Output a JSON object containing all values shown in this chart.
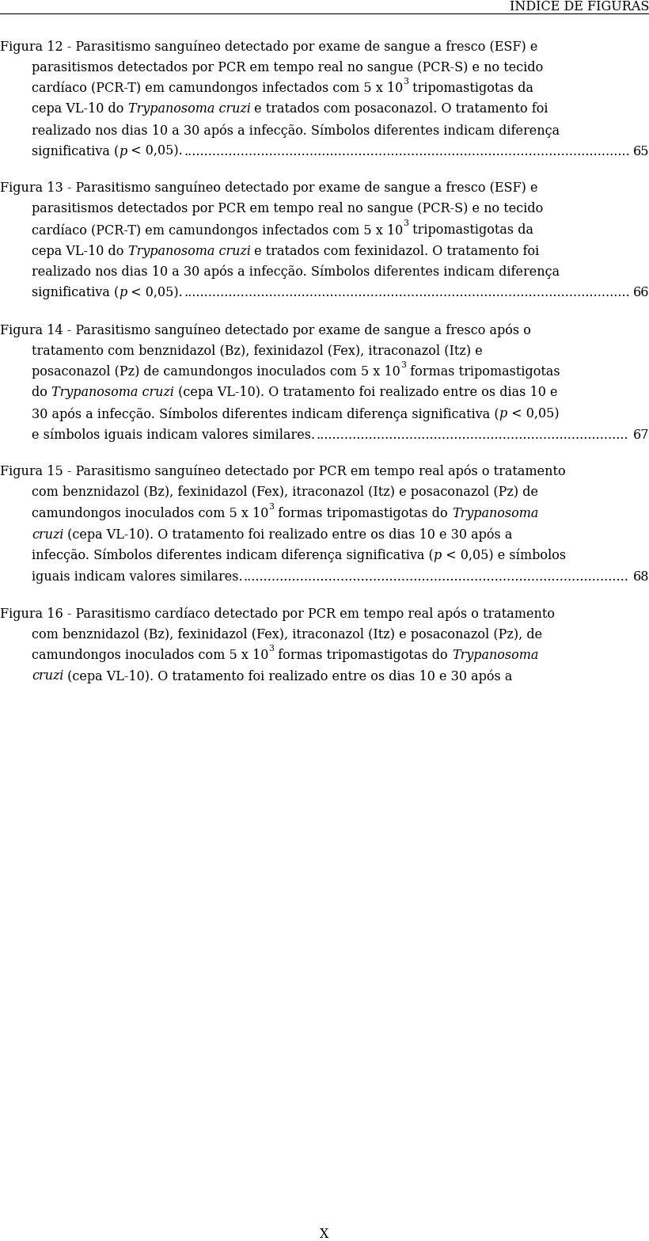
{
  "background_color": "#ffffff",
  "header_text": "ÍNDICE DE FIGURAS",
  "header_fontsize": 11.5,
  "body_fontsize": 11.5,
  "page_label": "X",
  "paragraphs": [
    {
      "lines": [
        {
          "indent": false,
          "parts": [
            [
              "Figura 12 - Parasitismo sanguíneo detectado por exame de sangue a fresco (ESF) e",
              "normal"
            ]
          ]
        },
        {
          "indent": true,
          "parts": [
            [
              "parasitismos detectados por PCR em tempo real no sangue (PCR-S) e no tecido",
              "normal"
            ]
          ]
        },
        {
          "indent": true,
          "parts": [
            [
              "cardíaco (PCR-T) em camundongos infectados com 5 x 10",
              "normal"
            ],
            [
              "3",
              "super"
            ],
            [
              " tripomastigotas da",
              "normal"
            ]
          ]
        },
        {
          "indent": true,
          "parts": [
            [
              "cepa VL-10 do ",
              "normal"
            ],
            [
              "Trypanosoma cruzi",
              "italic"
            ],
            [
              " e tratados com posaconazol. O tratamento foi",
              "normal"
            ]
          ]
        },
        {
          "indent": true,
          "parts": [
            [
              "realizado nos dias 10 a 30 após a infecção. Símbolos diferentes indicam diferença",
              "normal"
            ]
          ]
        },
        {
          "indent": true,
          "parts": [
            [
              "significativa (",
              "normal"
            ],
            [
              "p",
              "italic"
            ],
            [
              " < 0,05).",
              "normal"
            ]
          ],
          "page": "65"
        }
      ]
    },
    {
      "lines": [
        {
          "indent": false,
          "parts": [
            [
              "Figura 13 - Parasitismo sanguíneo detectado por exame de sangue a fresco (ESF) e",
              "normal"
            ]
          ]
        },
        {
          "indent": true,
          "parts": [
            [
              "parasitismos detectados por PCR em tempo real no sangue (PCR-S) e no tecido",
              "normal"
            ]
          ]
        },
        {
          "indent": true,
          "parts": [
            [
              "cardíaco (PCR-T) em camundongos infectados com 5 x 10",
              "normal"
            ],
            [
              "3",
              "super"
            ],
            [
              " tripomastigotas da",
              "normal"
            ]
          ]
        },
        {
          "indent": true,
          "parts": [
            [
              "cepa VL-10 do ",
              "normal"
            ],
            [
              "Trypanosoma cruzi",
              "italic"
            ],
            [
              " e tratados com fexinidazol. O tratamento foi",
              "normal"
            ]
          ]
        },
        {
          "indent": true,
          "parts": [
            [
              "realizado nos dias 10 a 30 após a infecção. Símbolos diferentes indicam diferença",
              "normal"
            ]
          ]
        },
        {
          "indent": true,
          "parts": [
            [
              "significativa (",
              "normal"
            ],
            [
              "p",
              "italic"
            ],
            [
              " < 0,05).",
              "normal"
            ]
          ],
          "page": "66"
        }
      ]
    },
    {
      "lines": [
        {
          "indent": false,
          "parts": [
            [
              "Figura 14 - Parasitismo sanguíneo detectado por exame de sangue a fresco após o",
              "normal"
            ]
          ]
        },
        {
          "indent": true,
          "parts": [
            [
              "tratamento com benznidazol (Bz), fexinidazol (Fex), itraconazol (Itz) e",
              "normal"
            ]
          ]
        },
        {
          "indent": true,
          "parts": [
            [
              "posaconazol (Pz) de camundongos inoculados com 5 x 10",
              "normal"
            ],
            [
              "3",
              "super"
            ],
            [
              " formas tripomastigotas",
              "normal"
            ]
          ]
        },
        {
          "indent": true,
          "parts": [
            [
              "do ",
              "normal"
            ],
            [
              "Trypanosoma cruzi",
              "italic"
            ],
            [
              " (cepa VL-10). O tratamento foi realizado entre os dias 10 e",
              "normal"
            ]
          ]
        },
        {
          "indent": true,
          "parts": [
            [
              "30 após a infecção. Símbolos diferentes indicam diferença significativa (",
              "normal"
            ],
            [
              "p",
              "italic"
            ],
            [
              " < 0,05)",
              "normal"
            ]
          ]
        },
        {
          "indent": true,
          "parts": [
            [
              "e símbolos iguais indicam valores similares.",
              "normal"
            ]
          ],
          "page": "67"
        }
      ]
    },
    {
      "lines": [
        {
          "indent": false,
          "parts": [
            [
              "Figura 15 - Parasitismo sanguíneo detectado por PCR em tempo real após o tratamento",
              "normal"
            ]
          ]
        },
        {
          "indent": true,
          "parts": [
            [
              "com benznidazol (Bz), fexinidazol (Fex), itraconazol (Itz) e posaconazol (Pz) de",
              "normal"
            ]
          ]
        },
        {
          "indent": true,
          "parts": [
            [
              "camundongos inoculados com 5 x 10",
              "normal"
            ],
            [
              "3",
              "super"
            ],
            [
              " formas tripomastigotas do ",
              "normal"
            ],
            [
              "Trypanosoma",
              "italic"
            ]
          ]
        },
        {
          "indent": true,
          "parts": [
            [
              "cruzi",
              "italic"
            ],
            [
              " (cepa VL-10). O tratamento foi realizado entre os dias 10 e 30 após a",
              "normal"
            ]
          ]
        },
        {
          "indent": true,
          "parts": [
            [
              "infecção. Símbolos diferentes indicam diferença significativa (",
              "normal"
            ],
            [
              "p",
              "italic"
            ],
            [
              " < 0,05) e símbolos",
              "normal"
            ]
          ]
        },
        {
          "indent": true,
          "parts": [
            [
              "iguais indicam valores similares.",
              "normal"
            ]
          ],
          "page": "68"
        }
      ]
    },
    {
      "lines": [
        {
          "indent": false,
          "parts": [
            [
              "Figura 16 - Parasitismo cardíaco detectado por PCR em tempo real após o tratamento",
              "normal"
            ]
          ]
        },
        {
          "indent": true,
          "parts": [
            [
              "com benznidazol (Bz), fexinidazol (Fex), itraconazol (Itz) e posaconazol (Pz), de",
              "normal"
            ]
          ]
        },
        {
          "indent": true,
          "parts": [
            [
              "camundongos inoculados com 5 x 10",
              "normal"
            ],
            [
              "3",
              "super"
            ],
            [
              " formas tripomastigotas do ",
              "normal"
            ],
            [
              "Trypanosoma",
              "italic"
            ]
          ]
        },
        {
          "indent": true,
          "parts": [
            [
              "cruzi",
              "italic"
            ],
            [
              " (cepa VL-10). O tratamento foi realizado entre os dias 10 e 30 após a",
              "normal"
            ]
          ]
        }
      ]
    }
  ]
}
